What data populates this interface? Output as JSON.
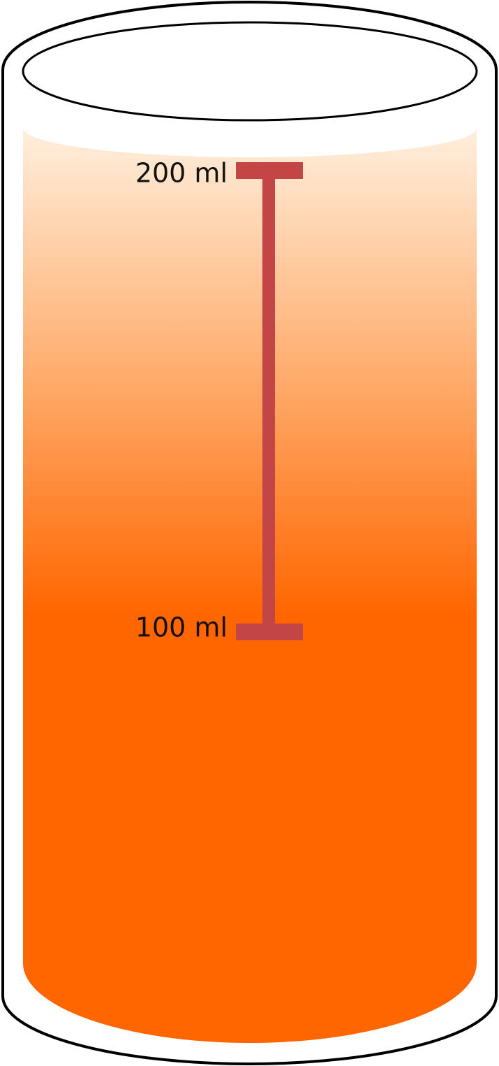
{
  "marks": [
    {
      "label": "200 ml"
    },
    {
      "label": "100 ml"
    }
  ]
}
